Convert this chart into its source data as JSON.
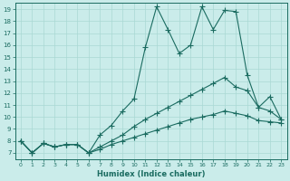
{
  "xlabel": "Humidex (Indice chaleur)",
  "bg_color": "#caecea",
  "grid_color": "#aad8d4",
  "line_color": "#1a6b60",
  "xlim": [
    -0.5,
    23.5
  ],
  "ylim": [
    6.5,
    19.5
  ],
  "xticks": [
    0,
    1,
    2,
    3,
    4,
    5,
    6,
    7,
    8,
    9,
    10,
    11,
    12,
    13,
    14,
    15,
    16,
    17,
    18,
    19,
    20,
    21,
    22,
    23
  ],
  "yticks": [
    7,
    8,
    9,
    10,
    11,
    12,
    13,
    14,
    15,
    16,
    17,
    18,
    19
  ],
  "line1_x": [
    0,
    1,
    2,
    3,
    4,
    5,
    6,
    7,
    8,
    9,
    10,
    11,
    12,
    13,
    14,
    15,
    16,
    17,
    18,
    19,
    20,
    21,
    22,
    23
  ],
  "line1_y": [
    8.0,
    7.0,
    7.8,
    7.5,
    7.7,
    7.7,
    7.0,
    8.5,
    9.3,
    10.5,
    11.5,
    15.8,
    19.2,
    17.3,
    15.3,
    16.0,
    19.2,
    17.3,
    18.9,
    18.8,
    13.5,
    10.8,
    11.7,
    9.8
  ],
  "line2_x": [
    0,
    1,
    2,
    3,
    4,
    5,
    6,
    7,
    8,
    9,
    10,
    11,
    12,
    13,
    14,
    15,
    16,
    17,
    18,
    19,
    20,
    21,
    22,
    23
  ],
  "line2_y": [
    8.0,
    7.0,
    7.8,
    7.5,
    7.7,
    7.7,
    7.0,
    7.5,
    8.0,
    8.5,
    9.2,
    9.8,
    10.3,
    10.8,
    11.3,
    11.8,
    12.3,
    12.8,
    13.3,
    12.5,
    12.2,
    10.8,
    10.5,
    9.8
  ],
  "line3_x": [
    0,
    1,
    2,
    3,
    4,
    5,
    6,
    7,
    8,
    9,
    10,
    11,
    12,
    13,
    14,
    15,
    16,
    17,
    18,
    19,
    20,
    21,
    22,
    23
  ],
  "line3_y": [
    8.0,
    7.0,
    7.8,
    7.5,
    7.7,
    7.7,
    7.0,
    7.3,
    7.7,
    8.0,
    8.3,
    8.6,
    8.9,
    9.2,
    9.5,
    9.8,
    10.0,
    10.2,
    10.5,
    10.3,
    10.1,
    9.7,
    9.6,
    9.5
  ]
}
